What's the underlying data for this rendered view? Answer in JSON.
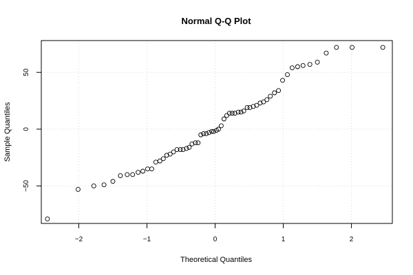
{
  "chart_data": {
    "type": "scatter",
    "title": "Normal Q-Q Plot",
    "xlabel": "Theoretical Quantiles",
    "ylabel": "Sample Quantiles",
    "xlim": [
      -2.55,
      2.6
    ],
    "ylim": [
      -83,
      78
    ],
    "x_ticks": [
      -2,
      -1,
      0,
      1,
      2
    ],
    "y_ticks": [
      -50,
      0,
      50
    ],
    "grid": true,
    "points": {
      "x": [
        -2.46,
        -2.01,
        -1.78,
        -1.63,
        -1.5,
        -1.39,
        -1.29,
        -1.21,
        -1.13,
        -1.06,
        -0.99,
        -0.93,
        -0.87,
        -0.81,
        -0.76,
        -0.71,
        -0.66,
        -0.61,
        -0.56,
        -0.51,
        -0.47,
        -0.42,
        -0.38,
        -0.34,
        -0.29,
        -0.25,
        -0.21,
        -0.17,
        -0.13,
        -0.09,
        -0.05,
        -0.02,
        0.02,
        0.05,
        0.09,
        0.13,
        0.17,
        0.21,
        0.25,
        0.29,
        0.34,
        0.38,
        0.42,
        0.47,
        0.51,
        0.56,
        0.61,
        0.66,
        0.71,
        0.76,
        0.81,
        0.87,
        0.93,
        0.99,
        1.06,
        1.13,
        1.21,
        1.29,
        1.39,
        1.5,
        1.63,
        1.78,
        2.01,
        2.46
      ],
      "y": [
        -79,
        -53,
        -50,
        -49,
        -46,
        -41,
        -40,
        -40,
        -38,
        -37,
        -35,
        -35,
        -29,
        -28,
        -26,
        -23,
        -22,
        -20,
        -18,
        -18,
        -18,
        -17,
        -16,
        -13,
        -12,
        -12,
        -5,
        -4,
        -4,
        -3,
        -2,
        -2,
        -1,
        0,
        3,
        9,
        12,
        14,
        14,
        14,
        15,
        15,
        16,
        19,
        19,
        20,
        21,
        23,
        24,
        26,
        29,
        32,
        34,
        43,
        48,
        54,
        55,
        56,
        57,
        59,
        67,
        72,
        72,
        72
      ]
    }
  }
}
